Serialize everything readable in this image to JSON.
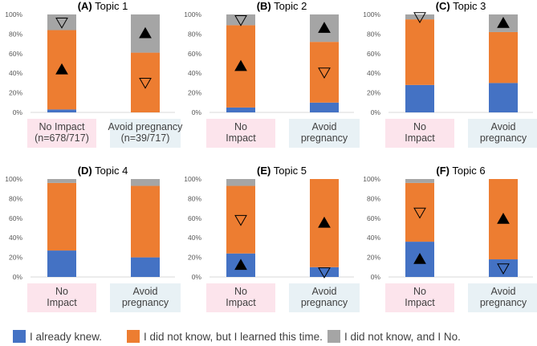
{
  "chart_data": [
    {
      "type": "bar",
      "stacked": true,
      "percent": true,
      "panel_label": "(A)",
      "title": "Topic 1",
      "categories": [
        "No Impact\n(n=678/717)",
        "Avoid pregnancy\n(n=39/717)"
      ],
      "series": [
        {
          "name": "I already knew.",
          "values": [
            3,
            0
          ]
        },
        {
          "name": "I did not know, but I learned this time.",
          "values": [
            81,
            61
          ]
        },
        {
          "name": "I did not know, and I No.",
          "values": [
            16,
            39
          ]
        }
      ],
      "markers": [
        {
          "category": 0,
          "series": 1,
          "symbol": "up-filled"
        },
        {
          "category": 0,
          "series": 2,
          "symbol": "down-open"
        },
        {
          "category": 1,
          "series": 1,
          "symbol": "down-open"
        },
        {
          "category": 1,
          "series": 2,
          "symbol": "up-filled"
        }
      ],
      "yticks": [
        "0%",
        "20%",
        "40%",
        "60%",
        "80%",
        "100%"
      ],
      "ylim": [
        0,
        100
      ]
    },
    {
      "type": "bar",
      "stacked": true,
      "percent": true,
      "panel_label": "(B)",
      "title": "Topic 2",
      "categories": [
        "No\nImpact",
        "Avoid\npregnancy"
      ],
      "series": [
        {
          "name": "I already knew.",
          "values": [
            5,
            10
          ]
        },
        {
          "name": "I did not know, but I learned this time.",
          "values": [
            84,
            62
          ]
        },
        {
          "name": "I did not know, and I No.",
          "values": [
            11,
            28
          ]
        }
      ],
      "markers": [
        {
          "category": 0,
          "series": 1,
          "symbol": "up-filled"
        },
        {
          "category": 0,
          "series": 2,
          "symbol": "down-open"
        },
        {
          "category": 1,
          "series": 1,
          "symbol": "down-open"
        },
        {
          "category": 1,
          "series": 2,
          "symbol": "up-filled"
        }
      ],
      "yticks": [
        "0%",
        "20%",
        "40%",
        "60%",
        "80%",
        "100%"
      ],
      "ylim": [
        0,
        100
      ]
    },
    {
      "type": "bar",
      "stacked": true,
      "percent": true,
      "panel_label": "(C)",
      "title": "Topic 3",
      "categories": [
        "No\nImpact",
        "Avoid\npregnancy"
      ],
      "series": [
        {
          "name": "I already knew.",
          "values": [
            28,
            30
          ]
        },
        {
          "name": "I did not know, but I learned this time.",
          "values": [
            67,
            52
          ]
        },
        {
          "name": "I did not know, and I No.",
          "values": [
            5,
            18
          ]
        }
      ],
      "markers": [
        {
          "category": 0,
          "series": 2,
          "symbol": "down-open"
        },
        {
          "category": 1,
          "series": 2,
          "symbol": "up-filled"
        }
      ],
      "yticks": [
        "0%",
        "20%",
        "40%",
        "60%",
        "80%",
        "100%"
      ],
      "ylim": [
        0,
        100
      ]
    },
    {
      "type": "bar",
      "stacked": true,
      "percent": true,
      "panel_label": "(D)",
      "title": "Topic 4",
      "categories": [
        "No\nImpact",
        "Avoid\npregnancy"
      ],
      "series": [
        {
          "name": "I already knew.",
          "values": [
            27,
            20
          ]
        },
        {
          "name": "I did not know, but I learned this time.",
          "values": [
            69,
            73
          ]
        },
        {
          "name": "I did not know, and I No.",
          "values": [
            4,
            7
          ]
        }
      ],
      "markers": [],
      "yticks": [
        "0%",
        "20%",
        "40%",
        "60%",
        "80%",
        "100%"
      ],
      "ylim": [
        0,
        100
      ]
    },
    {
      "type": "bar",
      "stacked": true,
      "percent": true,
      "panel_label": "(E)",
      "title": "Topic 5",
      "categories": [
        "No\nImpact",
        "Avoid\npregnancy"
      ],
      "series": [
        {
          "name": "I already knew.",
          "values": [
            24,
            10
          ]
        },
        {
          "name": "I did not know, but I learned this time.",
          "values": [
            69,
            90
          ]
        },
        {
          "name": "I did not know, and I No.",
          "values": [
            7,
            0
          ]
        }
      ],
      "markers": [
        {
          "category": 0,
          "series": 0,
          "symbol": "up-filled"
        },
        {
          "category": 0,
          "series": 1,
          "symbol": "down-open"
        },
        {
          "category": 1,
          "series": 0,
          "symbol": "down-open"
        },
        {
          "category": 1,
          "series": 1,
          "symbol": "up-filled"
        }
      ],
      "yticks": [
        "0%",
        "20%",
        "40%",
        "60%",
        "80%",
        "100%"
      ],
      "ylim": [
        0,
        100
      ]
    },
    {
      "type": "bar",
      "stacked": true,
      "percent": true,
      "panel_label": "(F)",
      "title": "Topic 6",
      "categories": [
        "No\nImpact",
        "Avoid\npregnancy"
      ],
      "series": [
        {
          "name": "I already knew.",
          "values": [
            36,
            18
          ]
        },
        {
          "name": "I did not know, but I learned this time.",
          "values": [
            60,
            82
          ]
        },
        {
          "name": "I did not know, and I No.",
          "values": [
            4,
            0
          ]
        }
      ],
      "markers": [
        {
          "category": 0,
          "series": 0,
          "symbol": "up-filled"
        },
        {
          "category": 0,
          "series": 1,
          "symbol": "down-open"
        },
        {
          "category": 1,
          "series": 0,
          "symbol": "down-open"
        },
        {
          "category": 1,
          "series": 1,
          "symbol": "up-filled"
        }
      ],
      "yticks": [
        "0%",
        "20%",
        "40%",
        "60%",
        "80%",
        "100%"
      ],
      "ylim": [
        0,
        100
      ]
    }
  ],
  "legend": {
    "position": "bottom",
    "items": [
      {
        "label": "I already knew.",
        "color": "#4472c4"
      },
      {
        "label": "I did not know, but I learned this time.",
        "color": "#ed7d31"
      },
      {
        "label": "I did not know, and I No.",
        "color": "#a5a5a5"
      }
    ]
  },
  "colors": {
    "series": [
      "#4472c4",
      "#ed7d31",
      "#a5a5a5"
    ],
    "label_box_no_impact": "#fce4ec",
    "label_box_avoid": "#e8f1f5",
    "axis": "#d9d9d9",
    "marker": "#000000"
  }
}
